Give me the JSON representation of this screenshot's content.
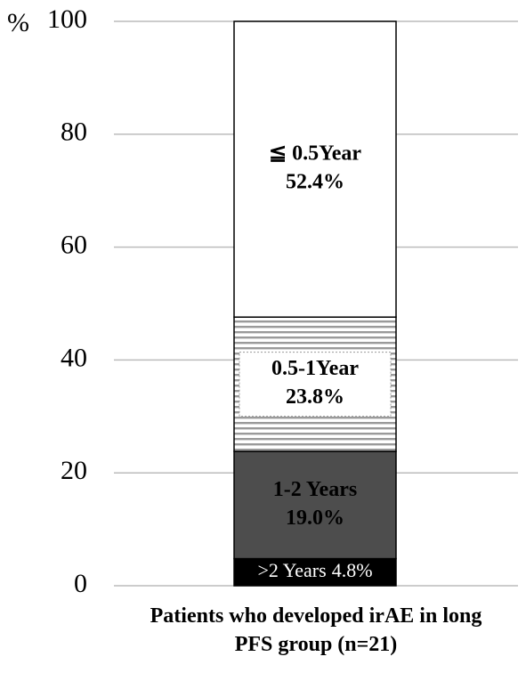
{
  "chart_data": {
    "type": "stacked-bar",
    "y_label": "%",
    "categories": [
      "Patients who developed irAE in long PFS group (n=21)"
    ],
    "series": [
      {
        "name": ">2 Years",
        "color": "#000000",
        "values": [
          4.8
        ],
        "value_labels": [
          "4.8%"
        ]
      },
      {
        "name": "1-2 Years",
        "color": "#4d4d4d",
        "values": [
          19.0
        ],
        "value_labels": [
          "19.0%"
        ]
      },
      {
        "name": "0.5-1Year",
        "color": "#9a9a9a",
        "pattern": "horizontal-stripes",
        "values": [
          23.8
        ],
        "value_labels": [
          "23.8%"
        ]
      },
      {
        "name": "≦ 0.5Year",
        "color": "#ffffff",
        "values": [
          52.4
        ],
        "value_labels": [
          "52.4%"
        ]
      }
    ],
    "ylim": [
      0,
      100
    ],
    "yticks": [
      0,
      20,
      40,
      60,
      80,
      100
    ],
    "grid": true
  }
}
